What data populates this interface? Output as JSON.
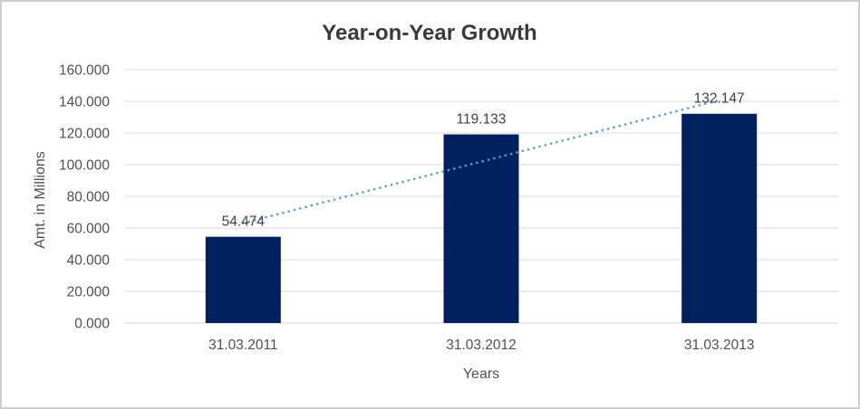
{
  "chart": {
    "title": "Year-on-Year Growth",
    "x_axis_title": "Years",
    "y_axis_title": "Amt. in Millions"
  },
  "chart_data": {
    "type": "bar",
    "title": "Year-on-Year Growth",
    "xlabel": "Years",
    "ylabel": "Amt. in Millions",
    "categories": [
      "31.03.2011",
      "31.03.2012",
      "31.03.2013"
    ],
    "values": [
      54.474,
      119.133,
      132.147
    ],
    "value_labels": [
      "54.474",
      "119.133",
      "132.147"
    ],
    "ylim": [
      0,
      160
    ],
    "y_tick_step": 20,
    "y_tick_labels": [
      "0.000",
      "20.000",
      "40.000",
      "60.000",
      "80.000",
      "100.000",
      "120.000",
      "140.000",
      "160.000"
    ],
    "grid": true,
    "legend": false,
    "trendline": {
      "type": "linear",
      "style": "dotted"
    },
    "colors": {
      "bar": "#01215e",
      "gridline": "#d9d9d9",
      "axis_line": "#d3d3d3",
      "trendline": "#5b9bd5",
      "label_text": "#404040",
      "axis_text": "#4f4f4f",
      "title_text": "#3a3a3a",
      "border": "#cfcdcd",
      "background": "#ffffff"
    }
  }
}
